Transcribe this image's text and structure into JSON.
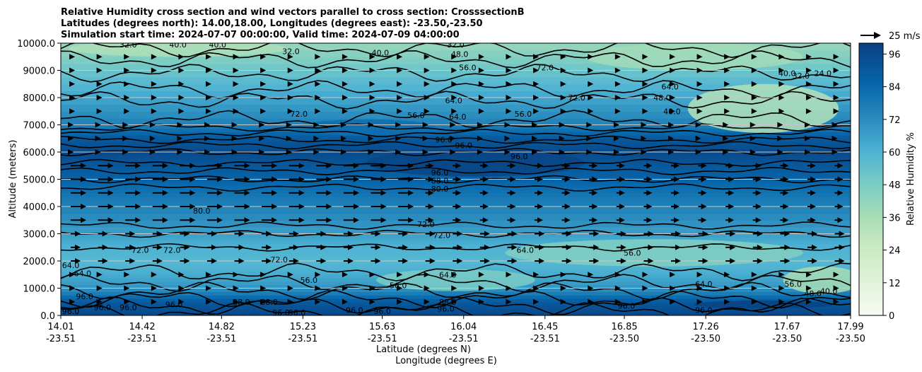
{
  "chart_data": {
    "type": "heatmap",
    "title_lines": [
      "Relative Humidity cross section and wind vectors parallel to cross section: CrosssectionB",
      "Latitudes (degrees north): 14.00,18.00, Longitudes (degrees east): -23.50,-23.50",
      "Simulation start time: 2024-07-07 00:00:00, Valid time: 2024-07-09 04:00:00"
    ],
    "ylabel": "Altitude (meters)",
    "xlabel_lat": "Latitude (degrees N)",
    "xlabel_lon": "Longitude (degrees E)",
    "ylim": [
      0,
      10000
    ],
    "xlim": [
      14.01,
      17.99
    ],
    "y_ticks": [
      "0.0",
      "1000.0",
      "2000.0",
      "3000.0",
      "4000.0",
      "5000.0",
      "6000.0",
      "7000.0",
      "8000.0",
      "9000.0",
      "10000.0"
    ],
    "x_ticks": [
      {
        "lat": "14.01",
        "lon": "-23.51"
      },
      {
        "lat": "14.42",
        "lon": "-23.51"
      },
      {
        "lat": "14.82",
        "lon": "-23.51"
      },
      {
        "lat": "15.23",
        "lon": "-23.51"
      },
      {
        "lat": "15.63",
        "lon": "-23.51"
      },
      {
        "lat": "16.04",
        "lon": "-23.51"
      },
      {
        "lat": "16.45",
        "lon": "-23.51"
      },
      {
        "lat": "16.85",
        "lon": "-23.50"
      },
      {
        "lat": "17.26",
        "lon": "-23.50"
      },
      {
        "lat": "17.67",
        "lon": "-23.50"
      },
      {
        "lat": "17.99",
        "lon": "-23.50"
      }
    ],
    "colorbar": {
      "label": "Relative Humidity %",
      "range": [
        0,
        100
      ],
      "ticks": [
        "0",
        "12",
        "24",
        "36",
        "48",
        "60",
        "72",
        "84",
        "96"
      ]
    },
    "quiver_key": "25 m/s",
    "rh_profile_by_altitude": [
      {
        "alt": 0,
        "rh": 97
      },
      {
        "alt": 500,
        "rh": 90
      },
      {
        "alt": 1000,
        "rh": 70
      },
      {
        "alt": 1500,
        "rh": 62
      },
      {
        "alt": 2000,
        "rh": 58
      },
      {
        "alt": 2500,
        "rh": 60
      },
      {
        "alt": 3000,
        "rh": 66
      },
      {
        "alt": 4000,
        "rh": 76
      },
      {
        "alt": 4500,
        "rh": 80
      },
      {
        "alt": 5000,
        "rh": 86
      },
      {
        "alt": 5500,
        "rh": 90
      },
      {
        "alt": 6000,
        "rh": 96
      },
      {
        "alt": 6500,
        "rh": 90
      },
      {
        "alt": 7000,
        "rh": 76
      },
      {
        "alt": 8000,
        "rh": 64
      },
      {
        "alt": 9000,
        "rh": 52
      },
      {
        "alt": 10000,
        "rh": 40
      }
    ],
    "contour_labels": [
      {
        "text": "32.0",
        "lat": 14.35,
        "alt": 9950
      },
      {
        "text": "40.0",
        "lat": 14.6,
        "alt": 9950
      },
      {
        "text": "40.0",
        "lat": 14.8,
        "alt": 9950
      },
      {
        "text": "32.0",
        "lat": 15.17,
        "alt": 9700
      },
      {
        "text": "40.0",
        "lat": 15.62,
        "alt": 9650
      },
      {
        "text": "32.0",
        "lat": 16.0,
        "alt": 9950
      },
      {
        "text": "48.0",
        "lat": 16.02,
        "alt": 9600
      },
      {
        "text": "56.0",
        "lat": 16.06,
        "alt": 9100
      },
      {
        "text": "72.0",
        "lat": 16.45,
        "alt": 9100
      },
      {
        "text": "40.0",
        "lat": 17.67,
        "alt": 8900
      },
      {
        "text": "32.0",
        "lat": 17.74,
        "alt": 8800
      },
      {
        "text": "24.0",
        "lat": 17.85,
        "alt": 8900
      },
      {
        "text": "64.0",
        "lat": 17.08,
        "alt": 8400
      },
      {
        "text": "72.0",
        "lat": 16.61,
        "alt": 8000
      },
      {
        "text": "48.0",
        "lat": 17.04,
        "alt": 8000
      },
      {
        "text": "40.0",
        "lat": 17.09,
        "alt": 7500
      },
      {
        "text": "64.0",
        "lat": 15.99,
        "alt": 7900
      },
      {
        "text": "64.0",
        "lat": 16.01,
        "alt": 7300
      },
      {
        "text": "72.0",
        "lat": 15.21,
        "alt": 7400
      },
      {
        "text": "56.0",
        "lat": 15.8,
        "alt": 7350
      },
      {
        "text": "56.0",
        "lat": 16.34,
        "alt": 7400
      },
      {
        "text": "96.0",
        "lat": 15.94,
        "alt": 6450
      },
      {
        "text": "96.0",
        "lat": 16.04,
        "alt": 6250
      },
      {
        "text": "96.0",
        "lat": 16.32,
        "alt": 5850
      },
      {
        "text": "96.0",
        "lat": 15.92,
        "alt": 5250
      },
      {
        "text": "88.0",
        "lat": 15.92,
        "alt": 4950
      },
      {
        "text": "80.0",
        "lat": 15.92,
        "alt": 4650
      },
      {
        "text": "80.0",
        "lat": 14.72,
        "alt": 3850
      },
      {
        "text": "72.0",
        "lat": 15.85,
        "alt": 3350
      },
      {
        "text": "72.0",
        "lat": 15.93,
        "alt": 2950
      },
      {
        "text": "72.0",
        "lat": 14.41,
        "alt": 2400
      },
      {
        "text": "72.0",
        "lat": 14.57,
        "alt": 2400
      },
      {
        "text": "64.0",
        "lat": 16.35,
        "alt": 2400
      },
      {
        "text": "56.0",
        "lat": 16.89,
        "alt": 2300
      },
      {
        "text": "72.0",
        "lat": 15.11,
        "alt": 2050
      },
      {
        "text": "64.0",
        "lat": 14.06,
        "alt": 1850
      },
      {
        "text": "64.0",
        "lat": 14.12,
        "alt": 1550
      },
      {
        "text": "64.0",
        "lat": 15.96,
        "alt": 1500
      },
      {
        "text": "56.0",
        "lat": 15.71,
        "alt": 1100
      },
      {
        "text": "56.0",
        "lat": 15.26,
        "alt": 1300
      },
      {
        "text": "64.0",
        "lat": 17.25,
        "alt": 1150
      },
      {
        "text": "56.0",
        "lat": 17.7,
        "alt": 1150
      },
      {
        "text": "48.0",
        "lat": 17.8,
        "alt": 800
      },
      {
        "text": "40.0",
        "lat": 17.88,
        "alt": 900
      },
      {
        "text": "96.0",
        "lat": 14.13,
        "alt": 700
      },
      {
        "text": "96.0",
        "lat": 14.58,
        "alt": 400
      },
      {
        "text": "88.0",
        "lat": 14.92,
        "alt": 500
      },
      {
        "text": "88.0",
        "lat": 15.06,
        "alt": 500
      },
      {
        "text": "96.0",
        "lat": 14.06,
        "alt": 150
      },
      {
        "text": "96.0",
        "lat": 14.22,
        "alt": 300
      },
      {
        "text": "96.0",
        "lat": 14.35,
        "alt": 300
      },
      {
        "text": "96.0",
        "lat": 15.12,
        "alt": 100
      },
      {
        "text": "96.0",
        "lat": 15.2,
        "alt": 100
      },
      {
        "text": "96.0",
        "lat": 15.49,
        "alt": 200
      },
      {
        "text": "96.0",
        "lat": 15.63,
        "alt": 150
      },
      {
        "text": "96.0",
        "lat": 15.95,
        "alt": 250
      },
      {
        "text": "96.0",
        "lat": 17.25,
        "alt": 200
      },
      {
        "text": "96.0",
        "lat": 16.86,
        "alt": 350
      },
      {
        "text": "88.0",
        "lat": 15.96,
        "alt": 500
      }
    ]
  }
}
